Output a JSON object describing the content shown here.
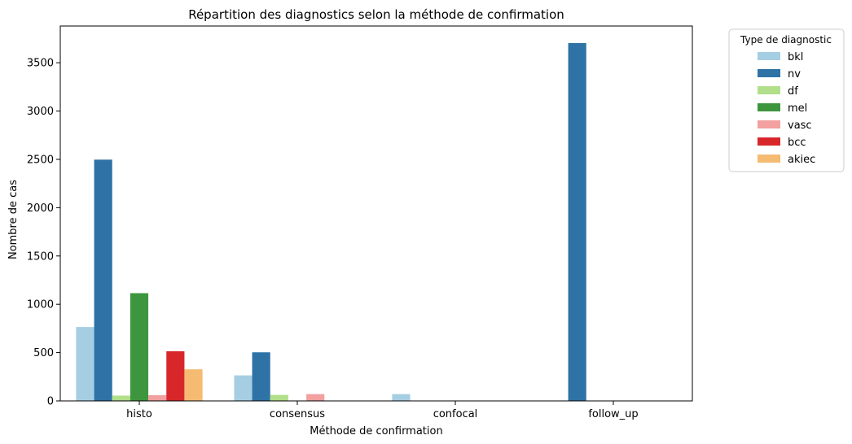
{
  "chart_data": {
    "type": "bar",
    "title": "Répartition des diagnostics selon la méthode de confirmation",
    "xlabel": "Méthode de confirmation",
    "ylabel": "Nombre de cas",
    "categories": [
      "histo",
      "consensus",
      "confocal",
      "follow_up"
    ],
    "ylim": [
      0,
      3880
    ],
    "yticks": [
      0,
      500,
      1000,
      1500,
      2000,
      2500,
      3000,
      3500
    ],
    "ytick_labels": [
      "0",
      "500",
      "1000",
      "1500",
      "2000",
      "2500",
      "3000",
      "3500"
    ],
    "legend_title": "Type de diagnostic",
    "legend_position": "outside upper right",
    "grid": false,
    "series": [
      {
        "name": "bkl",
        "color": "#a6cee3",
        "values": [
          765,
          264,
          70,
          0
        ]
      },
      {
        "name": "nv",
        "color": "#2e72a6",
        "values": [
          2497,
          503,
          0,
          3704
        ]
      },
      {
        "name": "df",
        "color": "#b2df8a",
        "values": [
          55,
          62,
          0,
          0
        ]
      },
      {
        "name": "mel",
        "color": "#3d963d",
        "values": [
          1115,
          0,
          0,
          0
        ]
      },
      {
        "name": "vasc",
        "color": "#f2a0a0",
        "values": [
          59,
          70,
          0,
          0
        ]
      },
      {
        "name": "bcc",
        "color": "#d7272a",
        "values": [
          514,
          0,
          0,
          0
        ]
      },
      {
        "name": "akiec",
        "color": "#f5bb72",
        "values": [
          327,
          0,
          0,
          0
        ]
      }
    ]
  }
}
